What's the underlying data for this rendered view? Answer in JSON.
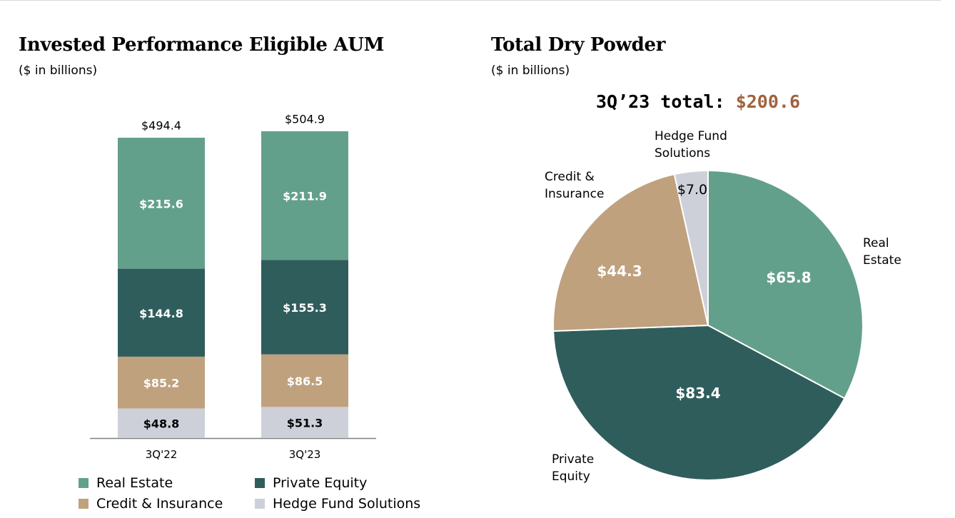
{
  "colors": {
    "real_estate": "#63a08b",
    "private_equity": "#2f5d5c",
    "credit_insurance": "#bfa17e",
    "hedge_fund": "#cdd0d8",
    "accent": "#a0623c"
  },
  "left_panel": {
    "title": "Invested Performance Eligible AUM",
    "subtitle": "($ in billions)"
  },
  "right_panel": {
    "title": "Total Dry Powder",
    "subtitle": "($ in billions)",
    "total_label": "3Q’23 total:",
    "total_value": "$200.6"
  },
  "legend": [
    {
      "name": "Real Estate",
      "color": "#63a08b"
    },
    {
      "name": "Private Equity",
      "color": "#2f5d5c"
    },
    {
      "name": "Credit & Insurance",
      "color": "#bfa17e"
    },
    {
      "name": "Hedge Fund Solutions",
      "color": "#cdd0d8"
    }
  ],
  "chart_data": [
    {
      "type": "bar",
      "stacked": true,
      "title": "Invested Performance Eligible AUM",
      "subtitle": "($ in billions)",
      "categories": [
        "3Q'22",
        "3Q'23"
      ],
      "totals": [
        494.4,
        504.9
      ],
      "total_labels": [
        "$494.4",
        "$504.9"
      ],
      "series": [
        {
          "name": "Hedge Fund Solutions",
          "values": [
            48.8,
            51.3
          ],
          "labels": [
            "$48.8",
            "$51.3"
          ],
          "color": "#cdd0d8",
          "label_color": "#000000"
        },
        {
          "name": "Credit & Insurance",
          "values": [
            85.2,
            86.5
          ],
          "labels": [
            "$85.2",
            "$86.5"
          ],
          "color": "#bfa17e",
          "label_color": "#ffffff"
        },
        {
          "name": "Private Equity",
          "values": [
            144.8,
            155.3
          ],
          "labels": [
            "$144.8",
            "$155.3"
          ],
          "color": "#2f5d5c",
          "label_color": "#ffffff"
        },
        {
          "name": "Real Estate",
          "values": [
            215.6,
            211.9
          ],
          "labels": [
            "$215.6",
            "$211.9"
          ],
          "color": "#63a08b",
          "label_color": "#ffffff"
        }
      ],
      "ylim": [
        0,
        510
      ]
    },
    {
      "type": "pie",
      "title": "Total Dry Powder",
      "subtitle": "($ in billions)",
      "total": 200.6,
      "slices": [
        {
          "name": "Real Estate",
          "label": "Real\nEstate",
          "value": 65.8,
          "value_label": "$65.8",
          "color": "#63a08b"
        },
        {
          "name": "Private Equity",
          "label": "Private\nEquity",
          "value": 83.4,
          "value_label": "$83.4",
          "color": "#2f5d5c"
        },
        {
          "name": "Credit & Insurance",
          "label": "Credit &\nInsurance",
          "value": 44.3,
          "value_label": "$44.3",
          "color": "#bfa17e"
        },
        {
          "name": "Hedge Fund Solutions",
          "label": "Hedge Fund\nSolutions",
          "value": 7.0,
          "value_label": "$7.0",
          "color": "#cdd0d8"
        }
      ]
    }
  ]
}
